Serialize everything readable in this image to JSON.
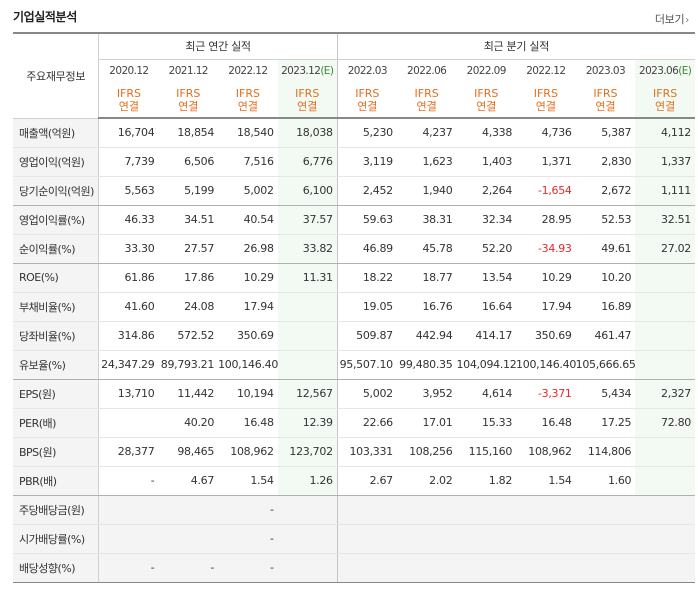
{
  "header": {
    "title": "기업실적분석",
    "more_label": "더보기"
  },
  "table": {
    "row_header": "주요재무정보",
    "group_annual": "최근 연간 실적",
    "group_quarter": "최근 분기 실적",
    "ifrs_line1": "IFRS",
    "ifrs_line2": "연결",
    "est_mark": "(E)",
    "annual_dates": [
      "2020.12",
      "2021.12",
      "2022.12",
      "2023.12"
    ],
    "quarter_dates": [
      "2022.03",
      "2022.06",
      "2022.09",
      "2022.12",
      "2023.03",
      "2023.06"
    ],
    "rows": [
      {
        "label": "매출액(억원)",
        "values": [
          "16,704",
          "18,854",
          "18,540",
          "18,038",
          "5,230",
          "4,237",
          "4,338",
          "4,736",
          "5,387",
          "4,112"
        ]
      },
      {
        "label": "영업이익(억원)",
        "values": [
          "7,739",
          "6,506",
          "7,516",
          "6,776",
          "3,119",
          "1,623",
          "1,403",
          "1,371",
          "2,830",
          "1,337"
        ]
      },
      {
        "label": "당기순이익(억원)",
        "values": [
          "5,563",
          "5,199",
          "5,002",
          "6,100",
          "2,452",
          "1,940",
          "2,264",
          "-1,654",
          "2,672",
          "1,111"
        ]
      },
      {
        "label": "영업이익률(%)",
        "values": [
          "46.33",
          "34.51",
          "40.54",
          "37.57",
          "59.63",
          "38.31",
          "32.34",
          "28.95",
          "52.53",
          "32.51"
        ]
      },
      {
        "label": "순이익률(%)",
        "values": [
          "33.30",
          "27.57",
          "26.98",
          "33.82",
          "46.89",
          "45.78",
          "52.20",
          "-34.93",
          "49.61",
          "27.02"
        ]
      },
      {
        "label": "ROE(%)",
        "values": [
          "61.86",
          "17.86",
          "10.29",
          "11.31",
          "18.22",
          "18.77",
          "13.54",
          "10.29",
          "10.20",
          ""
        ]
      },
      {
        "label": "부채비율(%)",
        "values": [
          "41.60",
          "24.08",
          "17.94",
          "",
          "19.05",
          "16.76",
          "16.64",
          "17.94",
          "16.89",
          ""
        ]
      },
      {
        "label": "당좌비율(%)",
        "values": [
          "314.86",
          "572.52",
          "350.69",
          "",
          "509.87",
          "442.94",
          "414.17",
          "350.69",
          "461.47",
          ""
        ]
      },
      {
        "label": "유보율(%)",
        "values": [
          "24,347.29",
          "89,793.21",
          "100,146.40",
          "",
          "95,507.10",
          "99,480.35",
          "104,094.12",
          "100,146.40",
          "105,666.65",
          ""
        ]
      },
      {
        "label": "EPS(원)",
        "values": [
          "13,710",
          "11,442",
          "10,194",
          "12,567",
          "5,002",
          "3,952",
          "4,614",
          "-3,371",
          "5,434",
          "2,327"
        ]
      },
      {
        "label": "PER(배)",
        "values": [
          "",
          "40.20",
          "16.48",
          "12.39",
          "22.66",
          "17.01",
          "15.33",
          "16.48",
          "17.25",
          "72.80"
        ]
      },
      {
        "label": "BPS(원)",
        "values": [
          "28,377",
          "98,465",
          "108,962",
          "123,702",
          "103,331",
          "108,256",
          "115,160",
          "108,962",
          "114,806",
          ""
        ]
      },
      {
        "label": "PBR(배)",
        "values": [
          "-",
          "4.67",
          "1.54",
          "1.26",
          "2.67",
          "2.02",
          "1.82",
          "1.54",
          "1.60",
          ""
        ]
      },
      {
        "label": "주당배당금(원)",
        "values": [
          "",
          "",
          "-",
          "",
          "",
          "",
          "",
          "",
          "",
          ""
        ]
      },
      {
        "label": "시가배당률(%)",
        "values": [
          "",
          "",
          "-",
          "",
          "",
          "",
          "",
          "",
          "",
          ""
        ]
      },
      {
        "label": "배당성향(%)",
        "values": [
          "-",
          "-",
          "-",
          "",
          "",
          "",
          "",
          "",
          "",
          ""
        ]
      }
    ]
  },
  "colors": {
    "ifrs": "#e56e1c",
    "estimate": "#3a8b3a",
    "negative": "#e02a2a"
  }
}
